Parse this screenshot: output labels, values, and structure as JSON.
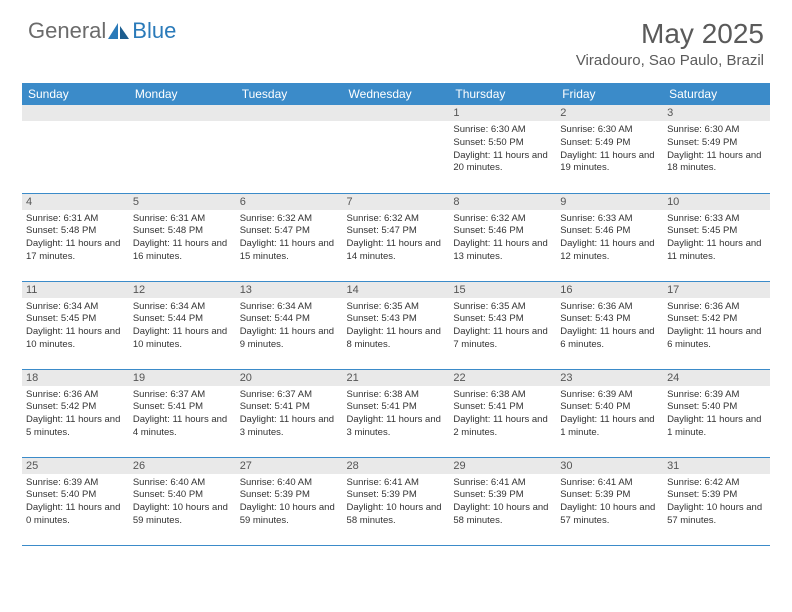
{
  "logo": {
    "general": "General",
    "blue": "Blue"
  },
  "title": "May 2025",
  "location": "Viradouro, Sao Paulo, Brazil",
  "colors": {
    "header_bg": "#3b8bc9",
    "daynum_bg": "#e9e9e9",
    "text": "#333333",
    "title_text": "#5a5a5a"
  },
  "daynames": [
    "Sunday",
    "Monday",
    "Tuesday",
    "Wednesday",
    "Thursday",
    "Friday",
    "Saturday"
  ],
  "weeks": [
    [
      null,
      null,
      null,
      null,
      {
        "n": "1",
        "sr": "6:30 AM",
        "ss": "5:50 PM",
        "dl": "11 hours and 20 minutes."
      },
      {
        "n": "2",
        "sr": "6:30 AM",
        "ss": "5:49 PM",
        "dl": "11 hours and 19 minutes."
      },
      {
        "n": "3",
        "sr": "6:30 AM",
        "ss": "5:49 PM",
        "dl": "11 hours and 18 minutes."
      }
    ],
    [
      {
        "n": "4",
        "sr": "6:31 AM",
        "ss": "5:48 PM",
        "dl": "11 hours and 17 minutes."
      },
      {
        "n": "5",
        "sr": "6:31 AM",
        "ss": "5:48 PM",
        "dl": "11 hours and 16 minutes."
      },
      {
        "n": "6",
        "sr": "6:32 AM",
        "ss": "5:47 PM",
        "dl": "11 hours and 15 minutes."
      },
      {
        "n": "7",
        "sr": "6:32 AM",
        "ss": "5:47 PM",
        "dl": "11 hours and 14 minutes."
      },
      {
        "n": "8",
        "sr": "6:32 AM",
        "ss": "5:46 PM",
        "dl": "11 hours and 13 minutes."
      },
      {
        "n": "9",
        "sr": "6:33 AM",
        "ss": "5:46 PM",
        "dl": "11 hours and 12 minutes."
      },
      {
        "n": "10",
        "sr": "6:33 AM",
        "ss": "5:45 PM",
        "dl": "11 hours and 11 minutes."
      }
    ],
    [
      {
        "n": "11",
        "sr": "6:34 AM",
        "ss": "5:45 PM",
        "dl": "11 hours and 10 minutes."
      },
      {
        "n": "12",
        "sr": "6:34 AM",
        "ss": "5:44 PM",
        "dl": "11 hours and 10 minutes."
      },
      {
        "n": "13",
        "sr": "6:34 AM",
        "ss": "5:44 PM",
        "dl": "11 hours and 9 minutes."
      },
      {
        "n": "14",
        "sr": "6:35 AM",
        "ss": "5:43 PM",
        "dl": "11 hours and 8 minutes."
      },
      {
        "n": "15",
        "sr": "6:35 AM",
        "ss": "5:43 PM",
        "dl": "11 hours and 7 minutes."
      },
      {
        "n": "16",
        "sr": "6:36 AM",
        "ss": "5:43 PM",
        "dl": "11 hours and 6 minutes."
      },
      {
        "n": "17",
        "sr": "6:36 AM",
        "ss": "5:42 PM",
        "dl": "11 hours and 6 minutes."
      }
    ],
    [
      {
        "n": "18",
        "sr": "6:36 AM",
        "ss": "5:42 PM",
        "dl": "11 hours and 5 minutes."
      },
      {
        "n": "19",
        "sr": "6:37 AM",
        "ss": "5:41 PM",
        "dl": "11 hours and 4 minutes."
      },
      {
        "n": "20",
        "sr": "6:37 AM",
        "ss": "5:41 PM",
        "dl": "11 hours and 3 minutes."
      },
      {
        "n": "21",
        "sr": "6:38 AM",
        "ss": "5:41 PM",
        "dl": "11 hours and 3 minutes."
      },
      {
        "n": "22",
        "sr": "6:38 AM",
        "ss": "5:41 PM",
        "dl": "11 hours and 2 minutes."
      },
      {
        "n": "23",
        "sr": "6:39 AM",
        "ss": "5:40 PM",
        "dl": "11 hours and 1 minute."
      },
      {
        "n": "24",
        "sr": "6:39 AM",
        "ss": "5:40 PM",
        "dl": "11 hours and 1 minute."
      }
    ],
    [
      {
        "n": "25",
        "sr": "6:39 AM",
        "ss": "5:40 PM",
        "dl": "11 hours and 0 minutes."
      },
      {
        "n": "26",
        "sr": "6:40 AM",
        "ss": "5:40 PM",
        "dl": "10 hours and 59 minutes."
      },
      {
        "n": "27",
        "sr": "6:40 AM",
        "ss": "5:39 PM",
        "dl": "10 hours and 59 minutes."
      },
      {
        "n": "28",
        "sr": "6:41 AM",
        "ss": "5:39 PM",
        "dl": "10 hours and 58 minutes."
      },
      {
        "n": "29",
        "sr": "6:41 AM",
        "ss": "5:39 PM",
        "dl": "10 hours and 58 minutes."
      },
      {
        "n": "30",
        "sr": "6:41 AM",
        "ss": "5:39 PM",
        "dl": "10 hours and 57 minutes."
      },
      {
        "n": "31",
        "sr": "6:42 AM",
        "ss": "5:39 PM",
        "dl": "10 hours and 57 minutes."
      }
    ]
  ],
  "labels": {
    "sunrise": "Sunrise: ",
    "sunset": "Sunset: ",
    "daylight": "Daylight: "
  }
}
